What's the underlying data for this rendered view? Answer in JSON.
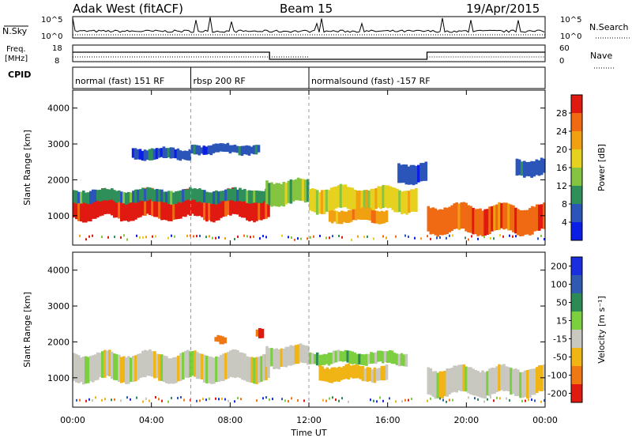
{
  "header": {
    "station": "Adak West (fitACF)",
    "beam": "Beam 15",
    "date": "19/Apr/2015"
  },
  "top_panels": {
    "nsky_label": "N.Sky",
    "nsearch_label": "N.Search",
    "nsky_ticks": [
      "10^5",
      "10^0"
    ],
    "nsky_ticks_right": [
      "10^5",
      "10^0"
    ],
    "freq_label_1": "Freq.",
    "freq_label_2": "[MHz]",
    "freq_ticks": [
      "18",
      "8"
    ],
    "nave_label": "Nave",
    "nave_ticks": [
      "60",
      "0"
    ],
    "cpid_label": "CPID",
    "cpid_segments": [
      {
        "label": "normal (fast) 151 RF",
        "start_hour": 0,
        "end_hour": 6
      },
      {
        "label": "rbsp 200 RF",
        "start_hour": 6,
        "end_hour": 12
      },
      {
        "label": "normalsound (fast) -157 RF",
        "start_hour": 12,
        "end_hour": 24
      }
    ]
  },
  "chart_data": [
    {
      "type": "heatmap",
      "name": "power",
      "ylabel": "Slant Range [km]",
      "ylim": [
        180,
        4500
      ],
      "yticks": [
        "1000",
        "2000",
        "3000",
        "4000"
      ],
      "colorbar_label": "Power [dB]",
      "colorbar_ticks": [
        "4",
        "8",
        "12",
        "16",
        "20",
        "24",
        "28"
      ],
      "colors": [
        "#0a1ee6",
        "#2b55b8",
        "#2f8f5a",
        "#84c441",
        "#e6d21e",
        "#f0a010",
        "#f06a14",
        "#e01a10"
      ],
      "bands": [
        {
          "t": [
            0,
            10
          ],
          "r": [
            900,
            1700
          ],
          "level": 7
        },
        {
          "t": [
            0,
            10
          ],
          "r": [
            1350,
            1750
          ],
          "level": 2
        },
        {
          "t": [
            9.8,
            12
          ],
          "r": [
            1300,
            2000
          ],
          "level": 3
        },
        {
          "t": [
            12,
            17.5
          ],
          "r": [
            1100,
            1800
          ],
          "level": 4
        },
        {
          "t": [
            13,
            16
          ],
          "r": [
            800,
            1200
          ],
          "level": 5
        },
        {
          "t": [
            18,
            24
          ],
          "r": [
            500,
            1300
          ],
          "level": 6
        },
        {
          "t": [
            3,
            6
          ],
          "r": [
            2550,
            2900
          ],
          "level": 1
        },
        {
          "t": [
            6,
            9.5
          ],
          "r": [
            2700,
            3000
          ],
          "level": 1
        },
        {
          "t": [
            16.5,
            18
          ],
          "r": [
            1900,
            2500
          ],
          "level": 1
        },
        {
          "t": [
            22.5,
            24
          ],
          "r": [
            2100,
            2600
          ],
          "level": 1
        }
      ]
    },
    {
      "type": "heatmap",
      "name": "velocity",
      "xlabel": "Time UT",
      "ylabel": "Slant Range [km]",
      "ylim": [
        180,
        4500
      ],
      "yticks": [
        "1000",
        "2000",
        "3000",
        "4000"
      ],
      "xticks": [
        "00:00",
        "04:00",
        "08:00",
        "12:00",
        "16:00",
        "20:00",
        "00:00"
      ],
      "colorbar_label": "Velocity [m s⁻¹]",
      "colorbar_ticks": [
        "200",
        "100",
        "50",
        "15",
        "-15",
        "-50",
        "-100",
        "-200"
      ],
      "colors": [
        "#1a2ee0",
        "#2f5ab0",
        "#2e8a55",
        "#7ccf3e",
        "#c8c8c0",
        "#f0b414",
        "#f07814",
        "#e01a10"
      ],
      "bands": [
        {
          "t": [
            0,
            10
          ],
          "r": [
            900,
            1700
          ],
          "level": 4
        },
        {
          "t": [
            9.8,
            12
          ],
          "r": [
            1300,
            1900
          ],
          "level": 4
        },
        {
          "t": [
            12,
            17
          ],
          "r": [
            1350,
            1750
          ],
          "level": 3
        },
        {
          "t": [
            12.5,
            16
          ],
          "r": [
            900,
            1350
          ],
          "level": 5
        },
        {
          "t": [
            18,
            24
          ],
          "r": [
            500,
            1300
          ],
          "level": 4
        },
        {
          "t": [
            7.2,
            7.8
          ],
          "r": [
            1950,
            2200
          ],
          "level": 6
        },
        {
          "t": [
            9.3,
            9.7
          ],
          "r": [
            2100,
            2400
          ],
          "level": 7
        }
      ]
    }
  ]
}
